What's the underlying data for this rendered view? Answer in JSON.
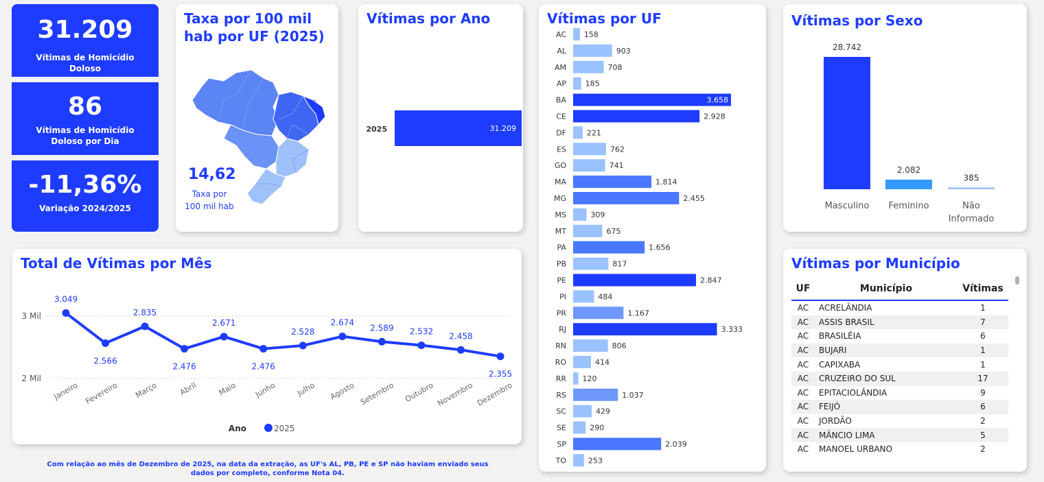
{
  "kpis": [
    {
      "value": "31.209",
      "label": "Vítimas de Homicídio Doloso"
    },
    {
      "value": "86",
      "label": "Vítimas de Homicídio Doloso por Dia"
    },
    {
      "value": "-11,36%",
      "label": "Variação 2024/2025"
    }
  ],
  "map_card": {
    "title": "Taxa por 100 mil hab por UF (2025)",
    "rate": "14,62",
    "rate_label": "Taxa por 100 mil hab"
  },
  "note": "Com relação ao mês de Dezembro de 2025, na data da extração, as UF's AL, PB, PE e SP não haviam enviado seus dados por completo, conforme Nota 04.",
  "municipio_table": {
    "title": "Vítimas por Município",
    "headers": [
      "UF",
      "Município",
      "Vítimas"
    ],
    "rows": [
      [
        "AC",
        "ACRELÂNDIA",
        "1"
      ],
      [
        "AC",
        "ASSIS BRASIL",
        "7"
      ],
      [
        "AC",
        "BRASILÉIA",
        "6"
      ],
      [
        "AC",
        "BUJARI",
        "1"
      ],
      [
        "AC",
        "CAPIXABA",
        "1"
      ],
      [
        "AC",
        "CRUZEIRO DO SUL",
        "17"
      ],
      [
        "AC",
        "EPITACIOLÂNDIA",
        "9"
      ],
      [
        "AC",
        "FEIJÓ",
        "6"
      ],
      [
        "AC",
        "JORDÃO",
        "2"
      ],
      [
        "AC",
        "MÂNCIO LIMA",
        "5"
      ],
      [
        "AC",
        "MANOEL URBANO",
        "2"
      ]
    ]
  },
  "colors": {
    "primary": "#1e3cff",
    "light": "#99c2ff",
    "mid": "#4a78ff",
    "bright": "#3399ff"
  },
  "chart_data": [
    {
      "type": "bar",
      "orientation": "horizontal",
      "title": "Vítimas por Ano",
      "categories": [
        "2025"
      ],
      "values": [
        31209
      ],
      "value_labels": [
        "31.209"
      ]
    },
    {
      "type": "bar",
      "orientation": "horizontal",
      "title": "Vítimas por UF",
      "categories": [
        "AC",
        "AL",
        "AM",
        "AP",
        "BA",
        "CE",
        "DF",
        "ES",
        "GO",
        "MA",
        "MG",
        "MS",
        "MT",
        "PA",
        "PB",
        "PE",
        "PI",
        "PR",
        "RJ",
        "RN",
        "RO",
        "RR",
        "RS",
        "SC",
        "SE",
        "SP",
        "TO"
      ],
      "values": [
        158,
        903,
        708,
        185,
        3658,
        2928,
        221,
        762,
        741,
        1814,
        2455,
        309,
        675,
        1656,
        817,
        2847,
        484,
        1167,
        3333,
        806,
        414,
        120,
        1037,
        429,
        290,
        2039,
        253
      ],
      "value_labels": [
        "158",
        "903",
        "708",
        "185",
        "3.658",
        "2.928",
        "221",
        "762",
        "741",
        "1.814",
        "2.455",
        "309",
        "675",
        "1.656",
        "817",
        "2.847",
        "484",
        "1.167",
        "3.333",
        "806",
        "414",
        "120",
        "1.037",
        "429",
        "290",
        "2.039",
        "253"
      ]
    },
    {
      "type": "bar",
      "title": "Vítimas por Sexo",
      "categories": [
        "Masculino",
        "Feminino",
        "Não Informado"
      ],
      "values": [
        28742,
        2082,
        385
      ],
      "value_labels": [
        "28.742",
        "2.082",
        "385"
      ],
      "colors": [
        "#1e3cff",
        "#3399ff",
        "#99c2ff"
      ]
    },
    {
      "type": "line",
      "title": "Total de Vítimas por Mês",
      "categories": [
        "Janeiro",
        "Fevereiro",
        "Março",
        "Abril",
        "Maio",
        "Junho",
        "Julho",
        "Agosto",
        "Setembro",
        "Outubro",
        "Novembro",
        "Dezembro"
      ],
      "series": [
        {
          "name": "2025",
          "values": [
            3049,
            2566,
            2835,
            2476,
            2671,
            2476,
            2528,
            2674,
            2589,
            2532,
            2458,
            2355
          ],
          "labels": [
            "3.049",
            "2.566",
            "2.835",
            "2.476",
            "2.671",
            "2.476",
            "2.528",
            "2.674",
            "2.589",
            "2.532",
            "2.458",
            "2.355"
          ]
        }
      ],
      "yticks": [
        "2 Mil",
        "3 Mil"
      ],
      "ytick_values": [
        2000,
        3000
      ],
      "legend_title": "Ano",
      "legend": "bottom-center",
      "grid": true
    }
  ]
}
